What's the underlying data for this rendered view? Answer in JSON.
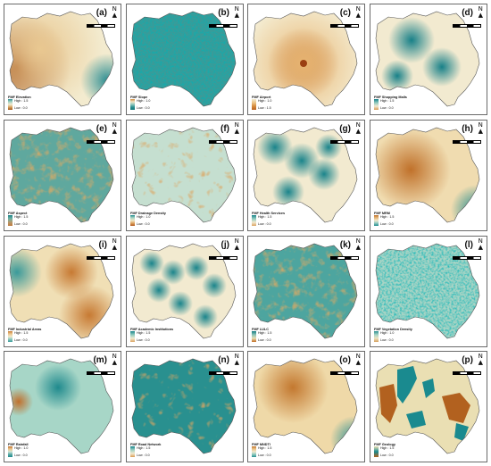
{
  "panels": [
    {
      "label": "(a)",
      "title": "FMF Elevation",
      "legend_high": "High : 1.5",
      "legend_low": "Low : 0.0",
      "ramp": [
        "#2f8f93",
        "#a7d3c2",
        "#f2ead0",
        "#d7a25e",
        "#a4551b"
      ]
    },
    {
      "label": "(b)",
      "title": "FMF Slope",
      "legend_high": "High : 1.0",
      "legend_low": "Low : 0.0",
      "ramp": [
        "#d08a3a",
        "#f0e6c8",
        "#8fc7bd",
        "#2a8f90",
        "#11767a"
      ]
    },
    {
      "label": "(c)",
      "title": "FMF Airport",
      "legend_high": "High : 1.0",
      "legend_low": "Low : 1.5",
      "ramp": [
        "#f3ebcf",
        "#ecc487",
        "#d58b3c",
        "#b8601e"
      ]
    },
    {
      "label": "(d)",
      "title": "FMF Shopping Malls",
      "legend_high": "High : 1.5",
      "legend_low": "Low : 0.0",
      "ramp": [
        "#178088",
        "#8fc9bf",
        "#f2ead0",
        "#d69b55"
      ]
    },
    {
      "label": "(e)",
      "title": "FMF Aspect",
      "legend_high": "High : 1.5",
      "legend_low": "Low : 0.0",
      "ramp": [
        "#1c8288",
        "#6fb3a6",
        "#b7986c",
        "#c07a3c"
      ]
    },
    {
      "label": "(f)",
      "title": "FMF Drainage Density",
      "legend_high": "High : 1.0",
      "legend_low": "Low : 0.0",
      "ramp": [
        "#1f8b8e",
        "#a9d4c4",
        "#f1e7c6",
        "#dda25f",
        "#b2581d"
      ]
    },
    {
      "label": "(g)",
      "title": "FMF Health Services",
      "legend_high": "High : 1.5",
      "legend_low": "Low : 0.0",
      "ramp": [
        "#1a848b",
        "#8ecabe",
        "#f2ead0",
        "#dba461"
      ]
    },
    {
      "label": "(h)",
      "title": "FMF MRM",
      "legend_high": "High : 1.5",
      "legend_low": "Low : 0.0",
      "ramp": [
        "#c0712a",
        "#e5b879",
        "#f2ead0",
        "#8fc9bf",
        "#1d8a8d"
      ]
    },
    {
      "label": "(i)",
      "title": "FMF Industrial Areas",
      "legend_high": "High : 1.5",
      "legend_low": "Low : 0.0",
      "ramp": [
        "#c77a33",
        "#ebc58c",
        "#f2ead0",
        "#8fc9bf",
        "#3a9a9a"
      ]
    },
    {
      "label": "(j)",
      "title": "FMF Academic Institutions",
      "legend_high": "High : 1.5",
      "legend_low": "Low : 0.0",
      "ramp": [
        "#1a848b",
        "#8ecabe",
        "#f2ead0",
        "#dba461"
      ]
    },
    {
      "label": "(k)",
      "title": "FMF LULC",
      "legend_high": "High : 1.5",
      "legend_low": "Low : 0.0",
      "ramp": [
        "#127a80",
        "#8cc4b8",
        "#e9dcb2",
        "#c26d22"
      ]
    },
    {
      "label": "(l)",
      "title": "FMF Vegetation Density",
      "legend_high": "High : 1.0",
      "legend_low": "Low : 0.0",
      "ramp": [
        "#2c8e90",
        "#a8d4c5",
        "#ede3c2",
        "#d7a15d"
      ]
    },
    {
      "label": "(m)",
      "title": "FMF Rainfall",
      "legend_high": "High : 1.0",
      "legend_low": "Low : 0.0",
      "ramp": [
        "#c0702d",
        "#ebc58b",
        "#cfe6d8",
        "#5aa9a6",
        "#1f8a8d"
      ]
    },
    {
      "label": "(n)",
      "title": "FMF Road Network",
      "legend_high": "High : 1.5",
      "legend_low": "Low : 0.0",
      "ramp": [
        "#14838a",
        "#9fd0c3",
        "#f2ead0",
        "#d99b55"
      ]
    },
    {
      "label": "(o)",
      "title": "FMF MNDTI",
      "legend_high": "High : 1.5",
      "legend_low": "Low : 0.0",
      "ramp": [
        "#c3782f",
        "#e9c287",
        "#f2ead0",
        "#8ec9be",
        "#2a9093"
      ]
    },
    {
      "label": "(p)",
      "title": "FMF Geology",
      "legend_high": "High : 1.5",
      "legend_low": "Low : 0.0",
      "ramp": [
        "#eadfb3",
        "#1a8a8f",
        "#b2611f"
      ]
    }
  ],
  "icons": {
    "north": "north-arrow-icon",
    "scale": "scale-bar"
  }
}
